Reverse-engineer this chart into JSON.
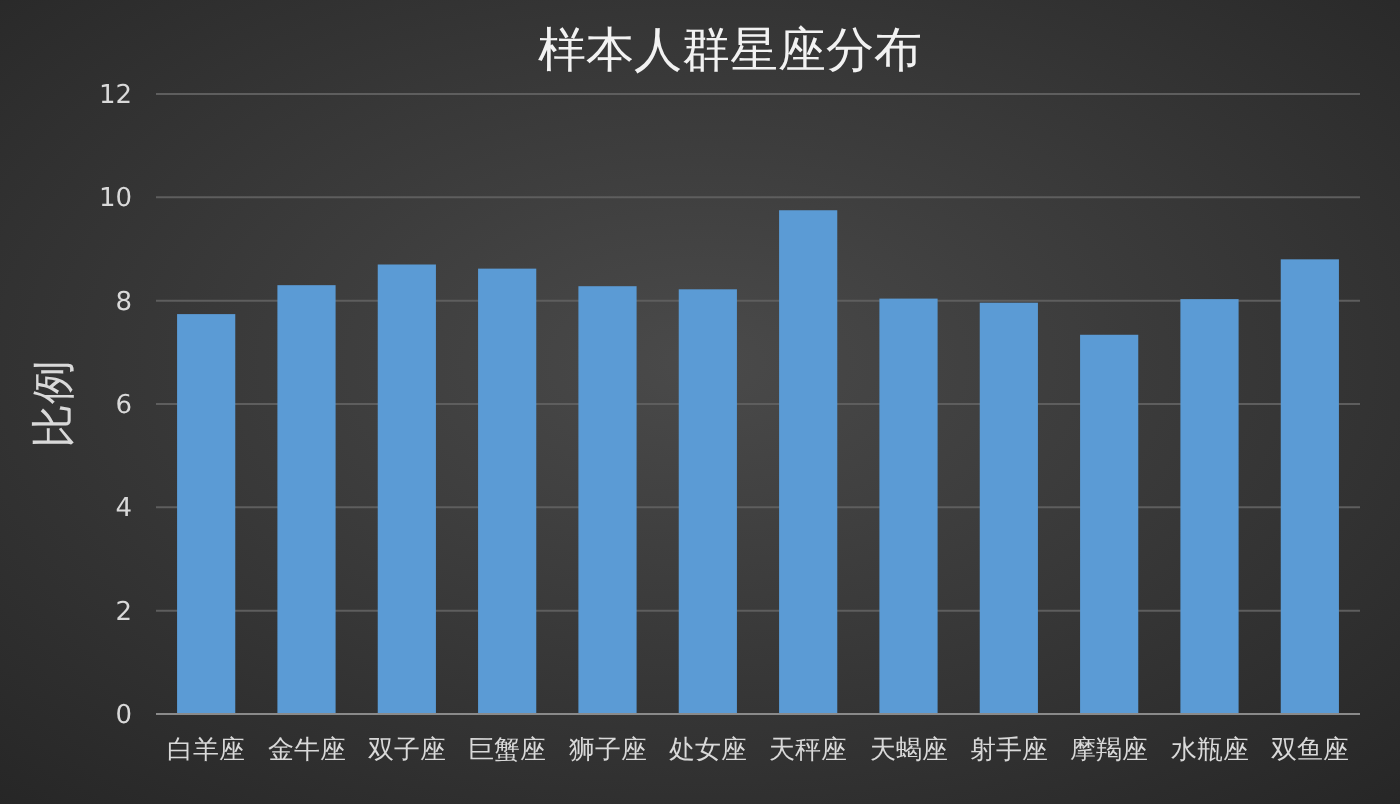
{
  "chart_data": {
    "type": "bar",
    "title": "样本人群星座分布",
    "ylabel": "比例",
    "categories": [
      "白羊座",
      "金牛座",
      "双子座",
      "巨蟹座",
      "狮子座",
      "处女座",
      "天秤座",
      "天蝎座",
      "射手座",
      "摩羯座",
      "水瓶座",
      "双鱼座"
    ],
    "values": [
      7.74,
      8.3,
      8.7,
      8.62,
      8.28,
      8.22,
      9.75,
      8.04,
      7.96,
      7.34,
      8.03,
      8.8
    ],
    "color": "#5b9bd5",
    "ylim": [
      0,
      12
    ],
    "yticks": [
      0,
      2,
      4,
      6,
      8,
      10,
      12
    ],
    "grid": "y"
  }
}
